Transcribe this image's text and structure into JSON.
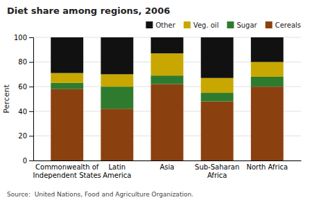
{
  "chart_data": {
    "type": "bar",
    "title": "Diet share among regions, 2006",
    "ylabel": "Percent",
    "annotations": [
      "Source:  United Nations, Food and Agriculture Organization."
    ],
    "categories": [
      "Commonwealth of\nIndependent States",
      "Latin\nAmerica",
      "Asia",
      "Sub-Saharan\nAfrica",
      "North Africa"
    ],
    "series": [
      {
        "name": "Cereals",
        "color": "#8B4010",
        "values": [
          58,
          42,
          62,
          48,
          60
        ]
      },
      {
        "name": "Sugar",
        "color": "#2E7B2E",
        "values": [
          5,
          18,
          7,
          7,
          8
        ]
      },
      {
        "name": "Veg. oil",
        "color": "#C8A800",
        "values": [
          8,
          10,
          18,
          12,
          12
        ]
      },
      {
        "name": "Other",
        "color": "#111111",
        "values": [
          29,
          30,
          13,
          33,
          20
        ]
      }
    ],
    "stacked": true,
    "ylim": [
      0,
      100
    ],
    "yticks": [
      0,
      20,
      40,
      60,
      80,
      100
    ],
    "grid": true,
    "legend": "top"
  }
}
